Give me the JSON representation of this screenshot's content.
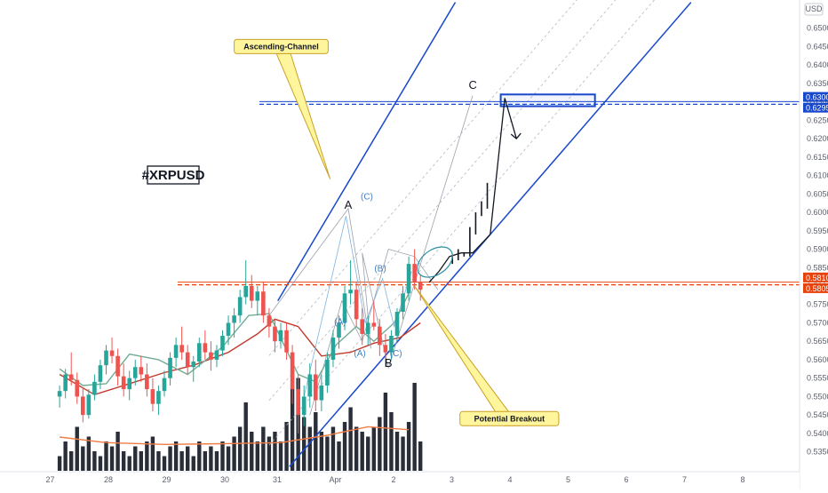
{
  "chart_data": {
    "type": "candlestick",
    "title": "#XRPUSD",
    "currency": "USD",
    "x_ticks": [
      "27",
      "28",
      "29",
      "30",
      "31",
      "Apr",
      "2",
      "3",
      "4",
      "5",
      "6",
      "7",
      "8"
    ],
    "y_ticks": [
      "0.6500",
      "0.6450",
      "0.6400",
      "0.6350",
      "0.6300",
      "0.6250",
      "0.6200",
      "0.6150",
      "0.6100",
      "0.6050",
      "0.6000",
      "0.5950",
      "0.5900",
      "0.5850",
      "0.5800",
      "0.5750",
      "0.5700",
      "0.5650",
      "0.5600",
      "0.5550",
      "0.5500",
      "0.5450",
      "0.5400",
      "0.5350"
    ],
    "ylim": [
      0.5325,
      0.6545
    ],
    "price_labels": [
      {
        "text": "0.6300",
        "value": 0.63,
        "color": "#1848cc"
      },
      {
        "text": "0.6295",
        "value": 0.6295,
        "color": "#1848cc"
      },
      {
        "text": "0.5810",
        "value": 0.581,
        "color": "#e8420c"
      },
      {
        "text": "0.5805",
        "value": 0.5805,
        "color": "#e8420c"
      }
    ],
    "horizontal_levels": [
      {
        "value": 0.6297,
        "color": "#1848cc"
      },
      {
        "value": 0.5807,
        "color": "#e8420c"
      }
    ],
    "target_box": {
      "x_from": 3.78,
      "x_to": 5.4,
      "y_from": 0.6288,
      "y_to": 0.632,
      "color": "#1848cc"
    },
    "channel": {
      "color": "#1848cc",
      "lower": [
        [
          0.15,
          0.531
        ],
        [
          7.05,
          0.657
        ]
      ],
      "upper": [
        [
          -0.05,
          0.576
        ],
        [
          3.0,
          0.657
        ]
      ]
    },
    "moving_averages": [
      {
        "color": "#c0392b",
        "points": [
          [
            -3.8,
            0.556
          ],
          [
            -3.2,
            0.5505
          ],
          [
            -2.6,
            0.5535
          ],
          [
            -2.0,
            0.5565
          ],
          [
            -1.5,
            0.5585
          ],
          [
            -0.9,
            0.562
          ],
          [
            -0.4,
            0.567
          ],
          [
            -0.1,
            0.571
          ],
          [
            0.3,
            0.569
          ],
          [
            0.7,
            0.561
          ],
          [
            1.2,
            0.562
          ],
          [
            1.6,
            0.5645
          ],
          [
            2.05,
            0.566
          ],
          [
            2.4,
            0.57
          ]
        ]
      },
      {
        "color": "#6fae94",
        "points": [
          [
            -3.8,
            0.5575
          ],
          [
            -3.4,
            0.553
          ],
          [
            -3.0,
            0.5535
          ],
          [
            -2.6,
            0.5615
          ],
          [
            -2.1,
            0.56
          ],
          [
            -1.6,
            0.556
          ],
          [
            -1.0,
            0.5635
          ],
          [
            -0.55,
            0.572
          ],
          [
            -0.2,
            0.5725
          ],
          [
            0.3,
            0.556
          ],
          [
            0.6,
            0.554
          ],
          [
            0.95,
            0.564
          ],
          [
            1.3,
            0.569
          ],
          [
            1.6,
            0.565
          ],
          [
            1.95,
            0.57
          ],
          [
            2.2,
            0.578
          ]
        ]
      },
      {
        "color": "#ef7c46",
        "points": [
          [
            -3.8,
            0.539
          ],
          [
            -3.0,
            0.5375
          ],
          [
            -2.0,
            0.537
          ],
          [
            -1.0,
            0.5372
          ],
          [
            0.0,
            0.5375
          ],
          [
            0.8,
            0.5395
          ],
          [
            1.5,
            0.5418
          ],
          [
            2.2,
            0.541
          ]
        ]
      }
    ],
    "projection": [
      [
        2.55,
        0.581
      ],
      [
        2.72,
        0.584
      ],
      [
        2.9,
        0.588
      ],
      [
        3.1,
        0.589
      ],
      [
        3.3,
        0.589
      ],
      [
        3.6,
        0.594
      ],
      [
        3.85,
        0.631
      ],
      [
        4.05,
        0.62
      ]
    ],
    "path_label_points": {
      "A": [
        1.16,
        0.601
      ],
      "B": [
        1.85,
        0.5578
      ],
      "C": [
        3.3,
        0.6317
      ]
    },
    "wave_labels": [
      {
        "text": "A",
        "x": 1.16,
        "y": 0.601,
        "style": "dark"
      },
      {
        "text": "B",
        "x": 1.85,
        "y": 0.558,
        "style": "dark"
      },
      {
        "text": "C",
        "x": 3.3,
        "y": 0.6335,
        "style": "dark"
      },
      {
        "text": "(C)",
        "x": 1.48,
        "y": 0.6035,
        "style": "blue"
      },
      {
        "text": "(B)",
        "x": 1.71,
        "y": 0.584,
        "style": "blue"
      },
      {
        "text": "(A)",
        "x": 1.02,
        "y": 0.5695,
        "style": "blue"
      },
      {
        "text": "(A)",
        "x": 1.36,
        "y": 0.561,
        "style": "blue"
      },
      {
        "text": "(C)",
        "x": 1.98,
        "y": 0.561,
        "style": "blue"
      }
    ],
    "callouts": [
      {
        "text": "Ascending-Channel",
        "box_x": -0.8,
        "box_y": 0.645,
        "tip_x": 0.85,
        "tip_y": 0.609
      },
      {
        "text": "Potential Breakout",
        "box_x": 3.08,
        "box_y": 0.544,
        "tip_x": 2.3,
        "tip_y": 0.58
      }
    ],
    "ellipse": {
      "x": 2.65,
      "y": 0.5865,
      "color": "#2a8fa8"
    },
    "candles": [
      {
        "x": -3.8,
        "o": 0.55,
        "h": 0.553,
        "l": 0.547,
        "c": 0.5515
      },
      {
        "x": -3.7,
        "o": 0.5515,
        "h": 0.5575,
        "l": 0.5495,
        "c": 0.556
      },
      {
        "x": -3.6,
        "o": 0.556,
        "h": 0.562,
        "l": 0.553,
        "c": 0.5545
      },
      {
        "x": -3.5,
        "o": 0.5545,
        "h": 0.5565,
        "l": 0.548,
        "c": 0.55
      },
      {
        "x": -3.4,
        "o": 0.55,
        "h": 0.5525,
        "l": 0.543,
        "c": 0.545
      },
      {
        "x": -3.3,
        "o": 0.545,
        "h": 0.552,
        "l": 0.544,
        "c": 0.5505
      },
      {
        "x": -3.2,
        "o": 0.5505,
        "h": 0.556,
        "l": 0.549,
        "c": 0.554
      },
      {
        "x": -3.1,
        "o": 0.554,
        "h": 0.56,
        "l": 0.552,
        "c": 0.5585
      },
      {
        "x": -3.0,
        "o": 0.5585,
        "h": 0.564,
        "l": 0.556,
        "c": 0.5625
      },
      {
        "x": -2.9,
        "o": 0.5625,
        "h": 0.566,
        "l": 0.559,
        "c": 0.561
      },
      {
        "x": -2.8,
        "o": 0.561,
        "h": 0.563,
        "l": 0.553,
        "c": 0.5555
      },
      {
        "x": -2.7,
        "o": 0.5555,
        "h": 0.559,
        "l": 0.55,
        "c": 0.552
      },
      {
        "x": -2.6,
        "o": 0.552,
        "h": 0.557,
        "l": 0.549,
        "c": 0.555
      },
      {
        "x": -2.5,
        "o": 0.555,
        "h": 0.56,
        "l": 0.553,
        "c": 0.558
      },
      {
        "x": -2.4,
        "o": 0.558,
        "h": 0.561,
        "l": 0.554,
        "c": 0.556
      },
      {
        "x": -2.3,
        "o": 0.556,
        "h": 0.559,
        "l": 0.55,
        "c": 0.552
      },
      {
        "x": -2.2,
        "o": 0.552,
        "h": 0.555,
        "l": 0.546,
        "c": 0.548
      },
      {
        "x": -2.1,
        "o": 0.548,
        "h": 0.553,
        "l": 0.545,
        "c": 0.5515
      },
      {
        "x": -2.0,
        "o": 0.5515,
        "h": 0.557,
        "l": 0.55,
        "c": 0.555
      },
      {
        "x": -1.9,
        "o": 0.555,
        "h": 0.562,
        "l": 0.553,
        "c": 0.5605
      },
      {
        "x": -1.8,
        "o": 0.5605,
        "h": 0.566,
        "l": 0.558,
        "c": 0.564
      },
      {
        "x": -1.7,
        "o": 0.564,
        "h": 0.569,
        "l": 0.56,
        "c": 0.562
      },
      {
        "x": -1.6,
        "o": 0.562,
        "h": 0.564,
        "l": 0.556,
        "c": 0.558
      },
      {
        "x": -1.5,
        "o": 0.558,
        "h": 0.561,
        "l": 0.554,
        "c": 0.5595
      },
      {
        "x": -1.4,
        "o": 0.5595,
        "h": 0.566,
        "l": 0.558,
        "c": 0.5645
      },
      {
        "x": -1.3,
        "o": 0.5645,
        "h": 0.568,
        "l": 0.56,
        "c": 0.562
      },
      {
        "x": -1.2,
        "o": 0.562,
        "h": 0.565,
        "l": 0.557,
        "c": 0.56
      },
      {
        "x": -1.1,
        "o": 0.56,
        "h": 0.564,
        "l": 0.558,
        "c": 0.5625
      },
      {
        "x": -1.0,
        "o": 0.5625,
        "h": 0.568,
        "l": 0.561,
        "c": 0.5665
      },
      {
        "x": -0.9,
        "o": 0.5665,
        "h": 0.572,
        "l": 0.564,
        "c": 0.57
      },
      {
        "x": -0.8,
        "o": 0.57,
        "h": 0.574,
        "l": 0.566,
        "c": 0.572
      },
      {
        "x": -0.7,
        "o": 0.572,
        "h": 0.579,
        "l": 0.57,
        "c": 0.577
      },
      {
        "x": -0.6,
        "o": 0.577,
        "h": 0.587,
        "l": 0.575,
        "c": 0.58
      },
      {
        "x": -0.5,
        "o": 0.58,
        "h": 0.583,
        "l": 0.574,
        "c": 0.576
      },
      {
        "x": -0.4,
        "o": 0.576,
        "h": 0.58,
        "l": 0.572,
        "c": 0.5785
      },
      {
        "x": -0.3,
        "o": 0.5785,
        "h": 0.581,
        "l": 0.57,
        "c": 0.572
      },
      {
        "x": -0.2,
        "o": 0.572,
        "h": 0.574,
        "l": 0.566,
        "c": 0.569
      },
      {
        "x": -0.1,
        "o": 0.569,
        "h": 0.571,
        "l": 0.562,
        "c": 0.565
      },
      {
        "x": 0.0,
        "o": 0.565,
        "h": 0.57,
        "l": 0.563,
        "c": 0.568
      },
      {
        "x": 0.1,
        "o": 0.568,
        "h": 0.57,
        "l": 0.56,
        "c": 0.562
      },
      {
        "x": 0.2,
        "o": 0.562,
        "h": 0.564,
        "l": 0.548,
        "c": 0.552
      },
      {
        "x": 0.3,
        "o": 0.552,
        "h": 0.556,
        "l": 0.54,
        "c": 0.545
      },
      {
        "x": 0.4,
        "o": 0.545,
        "h": 0.553,
        "l": 0.542,
        "c": 0.55
      },
      {
        "x": 0.5,
        "o": 0.55,
        "h": 0.559,
        "l": 0.547,
        "c": 0.556
      },
      {
        "x": 0.6,
        "o": 0.556,
        "h": 0.56,
        "l": 0.546,
        "c": 0.549
      },
      {
        "x": 0.7,
        "o": 0.549,
        "h": 0.556,
        "l": 0.546,
        "c": 0.553
      },
      {
        "x": 0.8,
        "o": 0.553,
        "h": 0.562,
        "l": 0.551,
        "c": 0.56
      },
      {
        "x": 0.9,
        "o": 0.56,
        "h": 0.568,
        "l": 0.558,
        "c": 0.566
      },
      {
        "x": 1.0,
        "o": 0.566,
        "h": 0.572,
        "l": 0.563,
        "c": 0.57
      },
      {
        "x": 1.1,
        "o": 0.57,
        "h": 0.58,
        "l": 0.568,
        "c": 0.578
      },
      {
        "x": 1.2,
        "o": 0.578,
        "h": 0.587,
        "l": 0.575,
        "c": 0.579
      },
      {
        "x": 1.3,
        "o": 0.579,
        "h": 0.581,
        "l": 0.569,
        "c": 0.571
      },
      {
        "x": 1.4,
        "o": 0.571,
        "h": 0.574,
        "l": 0.564,
        "c": 0.567
      },
      {
        "x": 1.5,
        "o": 0.567,
        "h": 0.572,
        "l": 0.564,
        "c": 0.57
      },
      {
        "x": 1.6,
        "o": 0.57,
        "h": 0.576,
        "l": 0.568,
        "c": 0.569
      },
      {
        "x": 1.7,
        "o": 0.569,
        "h": 0.571,
        "l": 0.561,
        "c": 0.564
      },
      {
        "x": 1.8,
        "o": 0.564,
        "h": 0.567,
        "l": 0.558,
        "c": 0.562
      },
      {
        "x": 1.9,
        "o": 0.562,
        "h": 0.568,
        "l": 0.56,
        "c": 0.5665
      },
      {
        "x": 2.0,
        "o": 0.5665,
        "h": 0.574,
        "l": 0.565,
        "c": 0.573
      },
      {
        "x": 2.1,
        "o": 0.573,
        "h": 0.58,
        "l": 0.571,
        "c": 0.578
      },
      {
        "x": 2.2,
        "o": 0.578,
        "h": 0.588,
        "l": 0.576,
        "c": 0.586
      },
      {
        "x": 2.3,
        "o": 0.586,
        "h": 0.59,
        "l": 0.579,
        "c": 0.581
      },
      {
        "x": 2.4,
        "o": 0.581,
        "h": 0.583,
        "l": 0.576,
        "c": 0.579
      }
    ],
    "volume": [
      {
        "x": -3.8,
        "v": 0.15
      },
      {
        "x": -3.7,
        "v": 0.3
      },
      {
        "x": -3.6,
        "v": 0.2
      },
      {
        "x": -3.5,
        "v": 0.45
      },
      {
        "x": -3.4,
        "v": 0.25
      },
      {
        "x": -3.3,
        "v": 0.35
      },
      {
        "x": -3.2,
        "v": 0.2
      },
      {
        "x": -3.1,
        "v": 0.15
      },
      {
        "x": -3.0,
        "v": 0.3
      },
      {
        "x": -2.9,
        "v": 0.25
      },
      {
        "x": -2.8,
        "v": 0.4
      },
      {
        "x": -2.7,
        "v": 0.2
      },
      {
        "x": -2.6,
        "v": 0.15
      },
      {
        "x": -2.5,
        "v": 0.25
      },
      {
        "x": -2.4,
        "v": 0.2
      },
      {
        "x": -2.3,
        "v": 0.3
      },
      {
        "x": -2.2,
        "v": 0.35
      },
      {
        "x": -2.1,
        "v": 0.2
      },
      {
        "x": -2.0,
        "v": 0.15
      },
      {
        "x": -1.9,
        "v": 0.25
      },
      {
        "x": -1.8,
        "v": 0.3
      },
      {
        "x": -1.7,
        "v": 0.2
      },
      {
        "x": -1.6,
        "v": 0.25
      },
      {
        "x": -1.5,
        "v": 0.15
      },
      {
        "x": -1.4,
        "v": 0.3
      },
      {
        "x": -1.3,
        "v": 0.2
      },
      {
        "x": -1.2,
        "v": 0.25
      },
      {
        "x": -1.1,
        "v": 0.2
      },
      {
        "x": -1.0,
        "v": 0.3
      },
      {
        "x": -0.9,
        "v": 0.25
      },
      {
        "x": -0.8,
        "v": 0.35
      },
      {
        "x": -0.7,
        "v": 0.45
      },
      {
        "x": -0.6,
        "v": 0.7
      },
      {
        "x": -0.5,
        "v": 0.4
      },
      {
        "x": -0.4,
        "v": 0.3
      },
      {
        "x": -0.3,
        "v": 0.45
      },
      {
        "x": -0.2,
        "v": 0.35
      },
      {
        "x": -0.1,
        "v": 0.4
      },
      {
        "x": 0.0,
        "v": 0.3
      },
      {
        "x": 0.1,
        "v": 0.5
      },
      {
        "x": 0.2,
        "v": 0.85
      },
      {
        "x": 0.3,
        "v": 0.95
      },
      {
        "x": 0.4,
        "v": 0.55
      },
      {
        "x": 0.5,
        "v": 0.45
      },
      {
        "x": 0.6,
        "v": 0.6
      },
      {
        "x": 0.7,
        "v": 0.4
      },
      {
        "x": 0.8,
        "v": 0.35
      },
      {
        "x": 0.9,
        "v": 0.45
      },
      {
        "x": 1.0,
        "v": 0.3
      },
      {
        "x": 1.1,
        "v": 0.5
      },
      {
        "x": 1.2,
        "v": 0.65
      },
      {
        "x": 1.3,
        "v": 0.45
      },
      {
        "x": 1.4,
        "v": 0.4
      },
      {
        "x": 1.5,
        "v": 0.35
      },
      {
        "x": 1.6,
        "v": 0.45
      },
      {
        "x": 1.7,
        "v": 0.55
      },
      {
        "x": 1.8,
        "v": 0.8
      },
      {
        "x": 1.9,
        "v": 0.6
      },
      {
        "x": 2.0,
        "v": 0.4
      },
      {
        "x": 2.1,
        "v": 0.35
      },
      {
        "x": 2.2,
        "v": 0.5
      },
      {
        "x": 2.3,
        "v": 0.9
      },
      {
        "x": 2.4,
        "v": 0.3
      }
    ],
    "colors": {
      "up": "#26a69a",
      "down": "#ef5350",
      "channel": "#1848cc",
      "support": "#e8420c",
      "callout_fill": "#fff59d",
      "callout_border": "#c9a227"
    },
    "grid": false
  }
}
